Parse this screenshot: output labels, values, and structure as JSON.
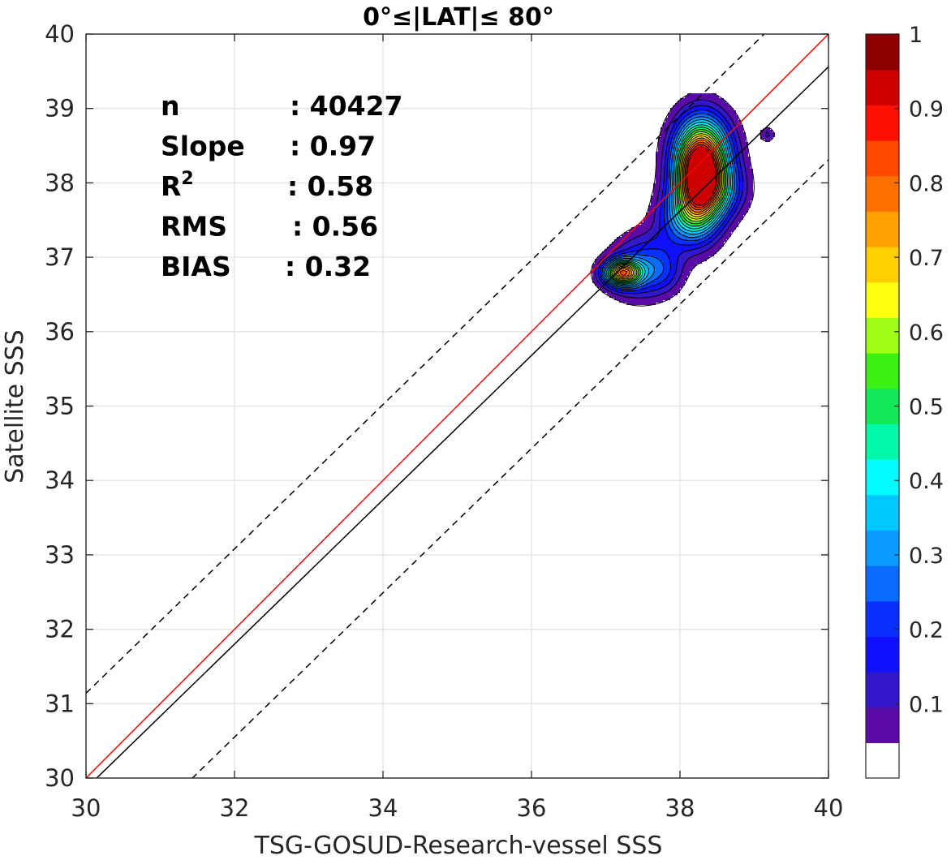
{
  "chart_data": {
    "type": "contour",
    "title": "0°≤|LAT|≤ 80°",
    "xlabel": "TSG-GOSUD-Research-vessel SSS",
    "ylabel": "Satellite SSS",
    "xlim": [
      30,
      40
    ],
    "ylim": [
      30,
      40
    ],
    "xticks": [
      "30",
      "32",
      "34",
      "36",
      "38",
      "40"
    ],
    "yticks": [
      "30",
      "31",
      "32",
      "33",
      "34",
      "35",
      "36",
      "37",
      "38",
      "39",
      "40"
    ],
    "grid": true,
    "stats": [
      {
        "name": "n",
        "value": ": 40427"
      },
      {
        "name": "Slope",
        "value": ": 0.97"
      },
      {
        "name": "R",
        "sup": "2",
        "value": ": 0.58"
      },
      {
        "name": "RMS",
        "value": ": 0.56"
      },
      {
        "name": "BIAS",
        "value": ": 0.32"
      }
    ],
    "lines": [
      {
        "role": "identity",
        "color": "#ff0000",
        "style": "solid",
        "slope": 1.0,
        "intercept": 0.0
      },
      {
        "role": "regression",
        "color": "#000000",
        "style": "solid",
        "slope": 0.97,
        "intercept": 0.76
      },
      {
        "role": "upper-bound",
        "color": "#000000",
        "style": "dashed",
        "slope": 0.97,
        "intercept": 2.04
      },
      {
        "role": "lower-bound",
        "color": "#000000",
        "style": "dashed",
        "slope": 0.97,
        "intercept": -0.49
      }
    ],
    "density_blobs": [
      {
        "cx": 38.27,
        "cy": 38.06,
        "sx": 0.22,
        "sy": 0.42,
        "amp": 1.0
      },
      {
        "cx": 38.32,
        "cy": 38.45,
        "sx": 0.28,
        "sy": 0.35,
        "amp": 0.35
      },
      {
        "cx": 38.05,
        "cy": 37.55,
        "sx": 0.25,
        "sy": 0.28,
        "amp": 0.25
      },
      {
        "cx": 38.55,
        "cy": 37.9,
        "sx": 0.25,
        "sy": 0.25,
        "amp": 0.2
      },
      {
        "cx": 37.22,
        "cy": 36.79,
        "sx": 0.17,
        "sy": 0.12,
        "amp": 0.72
      },
      {
        "cx": 37.45,
        "cy": 36.75,
        "sx": 0.28,
        "sy": 0.25,
        "amp": 0.17
      },
      {
        "cx": 37.55,
        "cy": 37.05,
        "sx": 0.3,
        "sy": 0.25,
        "amp": 0.12
      },
      {
        "cx": 37.8,
        "cy": 36.8,
        "sx": 0.18,
        "sy": 0.2,
        "amp": 0.1
      },
      {
        "cx": 39.18,
        "cy": 38.65,
        "sx": 0.07,
        "sy": 0.07,
        "amp": 0.11
      }
    ],
    "levels": [
      0.05,
      0.1,
      0.15,
      0.2,
      0.25,
      0.3,
      0.35,
      0.4,
      0.45,
      0.5,
      0.55,
      0.6,
      0.65,
      0.7,
      0.75,
      0.8,
      0.85,
      0.9,
      0.95
    ],
    "colorbar": {
      "ticks": [
        "0.1",
        "0.2",
        "0.3",
        "0.4",
        "0.5",
        "0.6",
        "0.7",
        "0.8",
        "0.9",
        "1"
      ],
      "tick_values": [
        0.1,
        0.2,
        0.3,
        0.4,
        0.5,
        0.6,
        0.7,
        0.8,
        0.9,
        1.0
      ],
      "colors": [
        "#ffffff",
        "#5a0aa6",
        "#3218c8",
        "#1010ff",
        "#0a30ff",
        "#0a6cff",
        "#0a9cff",
        "#00c8ff",
        "#00fcff",
        "#00f8a8",
        "#12e85a",
        "#3cf016",
        "#a0ff14",
        "#ffff10",
        "#ffd000",
        "#ffa000",
        "#ff7000",
        "#ff4800",
        "#ff1000",
        "#cc0000",
        "#8c0000"
      ]
    }
  }
}
